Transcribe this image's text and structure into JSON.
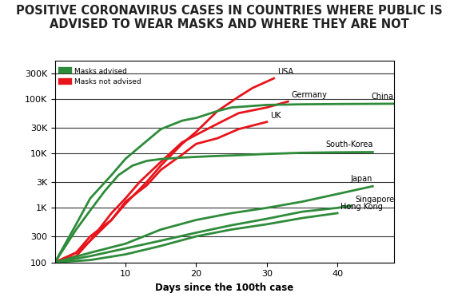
{
  "chart_data": {
    "type": "line",
    "title": "POSITIVE CORONAVIRUS CASES IN COUNTRIES WHERE PUBLIC IS ADVISED TO WEAR MASKS AND WHERE THEY ARE NOT",
    "x_label": "Days since the 100th case",
    "log": "y",
    "grid": true,
    "legend": "upper left",
    "legend_entries": [
      {
        "name": "Masks advised",
        "color": "#2e8b3a"
      },
      {
        "name": "Masks not advised",
        "color": "#e8141b"
      }
    ],
    "xlim": [
      0,
      48
    ],
    "xticks": [
      10,
      20,
      30,
      40
    ],
    "ylim": [
      100,
      500000
    ],
    "yticks": [
      100,
      300,
      {
        "value": 1000,
        "label": "1K"
      },
      {
        "value": 3000,
        "label": "3K"
      },
      {
        "value": 10000,
        "label": "10K"
      },
      {
        "value": 30000,
        "label": "30K"
      },
      {
        "value": 100000,
        "label": "100K"
      },
      {
        "value": 300000,
        "label": "300K"
      }
    ],
    "series": [
      {
        "name": "USA",
        "color": "#e8141b",
        "x": [
          0,
          3,
          5,
          8,
          10,
          13,
          15,
          18,
          20,
          23,
          26,
          28,
          31
        ],
        "values": [
          100,
          130,
          250,
          600,
          1200,
          3000,
          6000,
          15000,
          25000,
          60000,
          110000,
          160000,
          240000
        ]
      },
      {
        "name": "Germany",
        "color": "#e8141b",
        "x": [
          0,
          3,
          5,
          8,
          10,
          12,
          15,
          18,
          20,
          23,
          26,
          30,
          33
        ],
        "values": [
          100,
          150,
          250,
          800,
          1500,
          3000,
          7000,
          16000,
          22000,
          35000,
          55000,
          70000,
          90000
        ]
      },
      {
        "name": "UK",
        "color": "#e8141b",
        "x": [
          0,
          3,
          5,
          8,
          10,
          13,
          15,
          18,
          20,
          23,
          26,
          30
        ],
        "values": [
          100,
          150,
          300,
          600,
          1300,
          2600,
          5000,
          9500,
          15000,
          19000,
          28000,
          38000
        ]
      },
      {
        "name": "China",
        "color": "#2e8b3a",
        "x": [
          0,
          3,
          5,
          8,
          10,
          13,
          15,
          18,
          20,
          23,
          25,
          30,
          35,
          40,
          48
        ],
        "values": [
          100,
          500,
          1500,
          4000,
          8000,
          17000,
          28000,
          40000,
          45000,
          60000,
          70000,
          78000,
          80000,
          81000,
          82000
        ]
      },
      {
        "name": "South-Korea",
        "color": "#2e8b3a",
        "x": [
          0,
          3,
          5,
          7,
          9,
          11,
          13,
          15,
          18,
          22,
          26,
          30,
          35,
          40,
          45
        ],
        "values": [
          100,
          400,
          900,
          2000,
          4000,
          6000,
          7300,
          7900,
          8400,
          8900,
          9300,
          9800,
          10300,
          10500,
          10600
        ]
      },
      {
        "name": "Japan",
        "color": "#2e8b3a",
        "x": [
          0,
          5,
          10,
          15,
          20,
          25,
          30,
          35,
          40,
          45
        ],
        "values": [
          100,
          150,
          220,
          400,
          600,
          800,
          1000,
          1300,
          1800,
          2500
        ]
      },
      {
        "name": "Singapore",
        "color": "#2e8b3a",
        "x": [
          0,
          5,
          10,
          15,
          20,
          25,
          30,
          35,
          40,
          42
        ],
        "values": [
          100,
          130,
          180,
          250,
          350,
          480,
          630,
          850,
          1000,
          1100
        ]
      },
      {
        "name": "Hong Kong",
        "color": "#2e8b3a",
        "x": [
          0,
          5,
          10,
          15,
          20,
          25,
          30,
          35,
          40
        ],
        "values": [
          100,
          110,
          140,
          200,
          300,
          400,
          500,
          650,
          800
        ]
      }
    ]
  }
}
